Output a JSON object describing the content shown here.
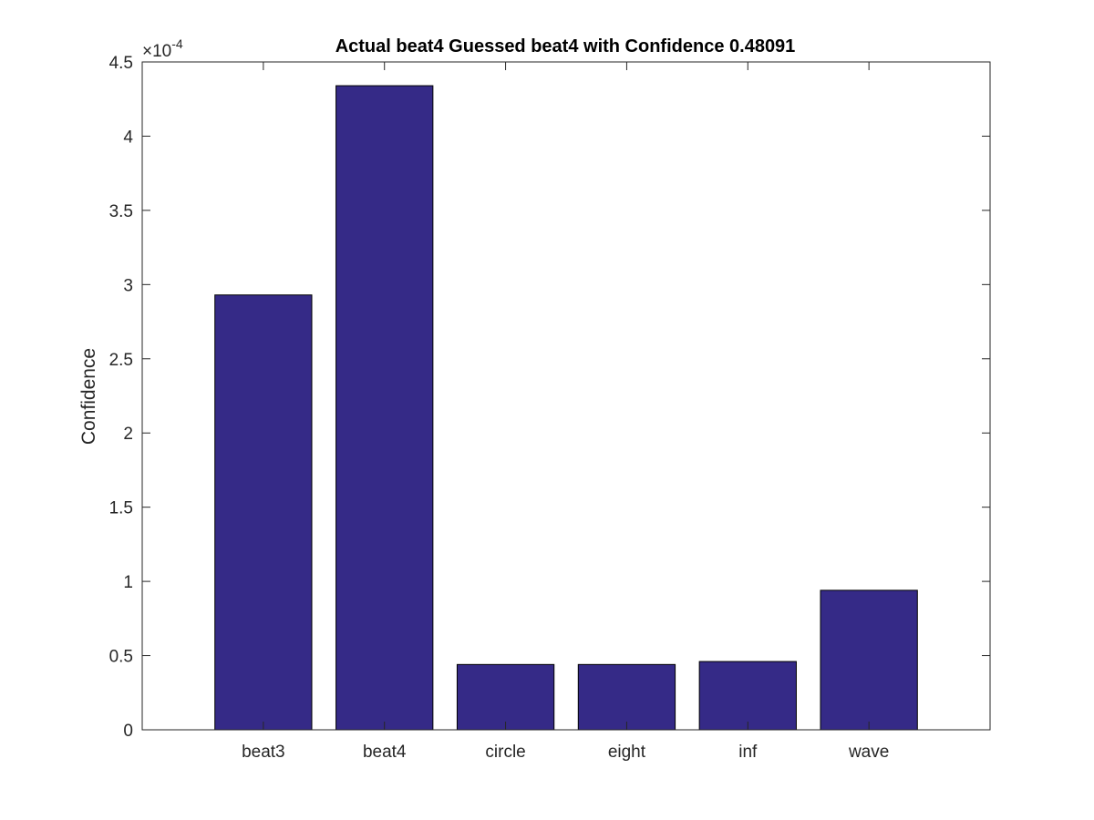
{
  "chart_data": {
    "type": "bar",
    "title": "Actual beat4 Guessed beat4 with Confidence 0.48091",
    "xlabel": "",
    "ylabel": "Confidence",
    "categories": [
      "beat3",
      "beat4",
      "circle",
      "eight",
      "inf",
      "wave"
    ],
    "values": [
      0.000293,
      0.000434,
      4.4e-05,
      4.4e-05,
      4.6e-05,
      9.4e-05
    ],
    "ylim": [
      0,
      0.00045
    ],
    "yticks": [
      0,
      5e-05,
      0.0001,
      0.00015,
      0.0002,
      0.00025,
      0.0003,
      0.00035,
      0.0004,
      0.00045
    ],
    "ytick_labels": [
      "0",
      "0.5",
      "1",
      "1.5",
      "2",
      "2.5",
      "3",
      "3.5",
      "4",
      "4.5"
    ],
    "y_exponent_multiplier": "×10",
    "y_exponent_power": "-4",
    "grid": false,
    "legend": "none",
    "bar_color": "#352a87",
    "bar_edge_color": "#000000",
    "axes_color": "#262626"
  }
}
